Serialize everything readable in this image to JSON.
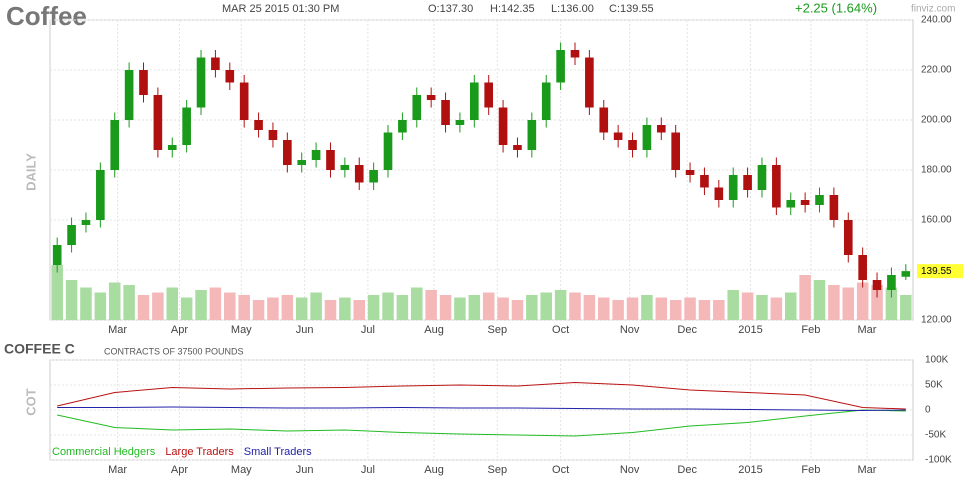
{
  "header": {
    "title": "Coffee",
    "datetime": "MAR 25 2015 01:30 PM",
    "open": "O:137.30",
    "high": "H:142.35",
    "low": "L:136.00",
    "close": "C:139.55",
    "change": "+2.25 (1.64%)",
    "brand": "finviz.com"
  },
  "chart_data": [
    {
      "type": "candlestick",
      "axis_label": "DAILY",
      "last_label": "139.55",
      "last_value": 139.55,
      "xlim": [
        -0.5,
        59.5
      ],
      "xticks": [
        {
          "value": 4.2,
          "label": "Mar"
        },
        {
          "value": 8.5,
          "label": "Apr"
        },
        {
          "value": 12.8,
          "label": "May"
        },
        {
          "value": 17.2,
          "label": "Jun"
        },
        {
          "value": 21.6,
          "label": "Jul"
        },
        {
          "value": 26.2,
          "label": "Aug"
        },
        {
          "value": 30.6,
          "label": "Sep"
        },
        {
          "value": 35,
          "label": "Oct"
        },
        {
          "value": 39.8,
          "label": "Nov"
        },
        {
          "value": 43.8,
          "label": "Dec"
        },
        {
          "value": 48.2,
          "label": "2015"
        },
        {
          "value": 52.4,
          "label": "Feb"
        },
        {
          "value": 56.3,
          "label": "Mar"
        }
      ],
      "ylim": [
        120,
        240
      ],
      "yticks": [
        {
          "value": 120,
          "label": "120.00"
        },
        {
          "value": 140,
          "label": "140.00"
        },
        {
          "value": 160,
          "label": "160.00"
        },
        {
          "value": 180,
          "label": "180.00"
        },
        {
          "value": 200,
          "label": "200.00"
        },
        {
          "value": 220,
          "label": "220.00"
        },
        {
          "value": 240,
          "label": "240.00"
        }
      ],
      "grid": true,
      "up_color": "#1a9a1a",
      "down_color": "#b01010",
      "open": [
        142,
        150,
        158,
        160,
        180,
        200,
        220,
        210,
        188,
        190,
        205,
        225,
        220,
        215,
        200,
        196,
        192,
        182,
        184,
        188,
        180,
        182,
        175,
        180,
        195,
        200,
        210,
        208,
        198,
        200,
        215,
        205,
        190,
        188,
        200,
        215,
        228,
        225,
        205,
        195,
        192,
        188,
        198,
        195,
        180,
        178,
        173,
        168,
        178,
        172,
        182,
        165,
        168,
        166,
        170,
        160,
        146,
        136,
        132,
        137.3
      ],
      "high": [
        153,
        161,
        163,
        183,
        203,
        223,
        223,
        213,
        193,
        208,
        228,
        228,
        223,
        218,
        203,
        199,
        195,
        187,
        191,
        191,
        185,
        185,
        183,
        198,
        203,
        213,
        213,
        211,
        203,
        218,
        218,
        208,
        193,
        203,
        218,
        231,
        231,
        228,
        208,
        198,
        195,
        201,
        201,
        198,
        183,
        181,
        176,
        181,
        181,
        185,
        185,
        171,
        171,
        173,
        173,
        163,
        149,
        139,
        141,
        142.35
      ],
      "low": [
        139,
        147,
        155,
        157,
        177,
        197,
        207,
        185,
        185,
        187,
        202,
        217,
        212,
        197,
        193,
        189,
        179,
        179,
        181,
        177,
        177,
        172,
        172,
        177,
        192,
        197,
        205,
        195,
        195,
        197,
        202,
        187,
        185,
        185,
        197,
        212,
        222,
        202,
        192,
        189,
        185,
        185,
        192,
        177,
        175,
        170,
        165,
        165,
        169,
        169,
        162,
        162,
        163,
        163,
        157,
        143,
        133,
        129,
        129,
        136
      ],
      "close": [
        150,
        158,
        160,
        180,
        200,
        220,
        210,
        188,
        190,
        205,
        225,
        220,
        215,
        200,
        196,
        192,
        182,
        184,
        188,
        180,
        182,
        175,
        180,
        195,
        200,
        210,
        208,
        198,
        200,
        215,
        205,
        190,
        188,
        200,
        215,
        228,
        225,
        205,
        195,
        192,
        188,
        198,
        195,
        180,
        178,
        173,
        168,
        178,
        172,
        182,
        165,
        168,
        166,
        170,
        160,
        146,
        136,
        132,
        138,
        139.55
      ],
      "volume": [
        142,
        136,
        133,
        131,
        135,
        134,
        130,
        131,
        133,
        129,
        132,
        133,
        131,
        130,
        128,
        129,
        130,
        129,
        131,
        128,
        129,
        128,
        130,
        131,
        130,
        133,
        132,
        130,
        129,
        130,
        131,
        129,
        128,
        130,
        131,
        132,
        131,
        130,
        129,
        128,
        129,
        130,
        129,
        128,
        129,
        128,
        128,
        132,
        131,
        130,
        129,
        131,
        138,
        136,
        134,
        133,
        135,
        134,
        133,
        130
      ]
    },
    {
      "type": "line",
      "title": "COFFEE C",
      "subtitle": "CONTRACTS OF 37500 POUNDS",
      "axis_label": "COT",
      "xlim": [
        -0.5,
        59.5
      ],
      "x": [
        0,
        4,
        8,
        12,
        16,
        20,
        24,
        28,
        32,
        36,
        40,
        44,
        48,
        52,
        56,
        59
      ],
      "y2lim": [
        -100000,
        100000
      ],
      "y2ticks": [
        {
          "value": 100000,
          "label": "100K"
        },
        {
          "value": 50000,
          "label": "50K"
        },
        0,
        {
          "value": -50000,
          "label": "-50K"
        },
        {
          "value": -100000,
          "label": "-100K"
        }
      ],
      "series": [
        {
          "name": "Commercial Hedgers",
          "color": "#22bb22",
          "axis": "y2",
          "values": [
            -10000,
            -35000,
            -40000,
            -38000,
            -42000,
            -40000,
            -45000,
            -48000,
            -50000,
            -52000,
            -45000,
            -32000,
            -25000,
            -12000,
            0,
            -2000
          ]
        },
        {
          "name": "Large Traders",
          "color": "#bb1111",
          "axis": "y2",
          "values": [
            8000,
            35000,
            45000,
            42000,
            44000,
            45000,
            48000,
            50000,
            48000,
            55000,
            50000,
            40000,
            35000,
            30000,
            5000,
            2000
          ]
        },
        {
          "name": "Small Traders",
          "color": "#2222aa",
          "axis": "y2",
          "values": [
            5000,
            5000,
            6000,
            5000,
            4000,
            4000,
            5000,
            4000,
            4000,
            3000,
            2000,
            2000,
            1000,
            0,
            -1000,
            0
          ]
        }
      ]
    }
  ]
}
